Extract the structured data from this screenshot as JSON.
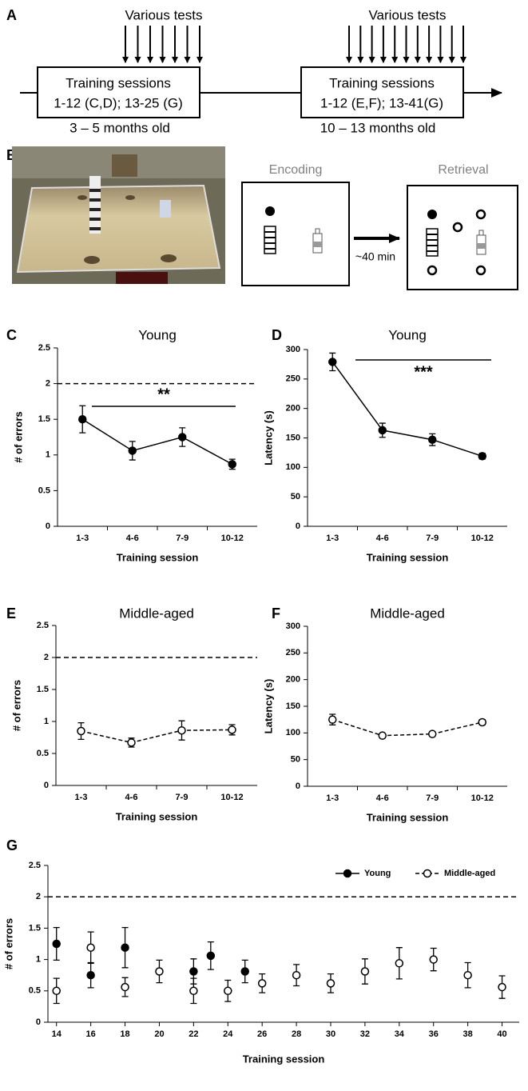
{
  "figure_a": {
    "label": "A",
    "tests_left": "Various tests",
    "tests_right": "Various tests",
    "box_left": [
      "Training sessions",
      "1-12 (C,D); 13-25 (G)"
    ],
    "box_right": [
      "Training sessions",
      "1-12 (E,F); 13-41(G)"
    ],
    "age_left": "3 – 5 months old",
    "age_right": "10 – 13 months old"
  },
  "figure_b": {
    "label": "B",
    "encoding": "Encoding",
    "retrieval": "Retrieval",
    "delay": "~40 min"
  },
  "chart_data": [
    {
      "type": "line",
      "panel": "C",
      "title": "Young",
      "x_label": "Training session",
      "y_label": "# of errors",
      "categories": [
        "1-3",
        "4-6",
        "7-9",
        "10-12"
      ],
      "series": [
        {
          "values": [
            1.5,
            1.06,
            1.25,
            0.87
          ],
          "errors": [
            0.19,
            0.13,
            0.13,
            0.07
          ],
          "color": "#000000",
          "marker": "filled",
          "line_style": "solid"
        }
      ],
      "ylim": [
        0,
        2.5
      ],
      "yticks": [
        0,
        0.5,
        1,
        1.5,
        2,
        2.5
      ],
      "hline": 2,
      "significance": "**"
    },
    {
      "type": "line",
      "panel": "D",
      "title": "Young",
      "x_label": "Training session",
      "y_label": "Latency (s)",
      "categories": [
        "1-3",
        "4-6",
        "7-9",
        "10-12"
      ],
      "series": [
        {
          "values": [
            279,
            163,
            147,
            119
          ],
          "errors": [
            15,
            12,
            10,
            5
          ],
          "color": "#000000",
          "marker": "filled",
          "line_style": "solid"
        }
      ],
      "ylim": [
        0,
        300
      ],
      "yticks": [
        0,
        50,
        100,
        150,
        200,
        250,
        300
      ],
      "significance": "***"
    },
    {
      "type": "line",
      "panel": "E",
      "title": "Middle-aged",
      "x_label": "Training session",
      "y_label": "# of errors",
      "categories": [
        "1-3",
        "4-6",
        "7-9",
        "10-12"
      ],
      "series": [
        {
          "values": [
            0.85,
            0.67,
            0.86,
            0.87
          ],
          "errors": [
            0.13,
            0.07,
            0.15,
            0.08
          ],
          "color": "#000000",
          "marker": "open",
          "line_style": "dashed"
        }
      ],
      "ylim": [
        0,
        2.5
      ],
      "yticks": [
        0,
        0.5,
        1,
        1.5,
        2,
        2.5
      ],
      "hline": 2
    },
    {
      "type": "line",
      "panel": "F",
      "title": "Middle-aged",
      "x_label": "Training session",
      "y_label": "Latency (s)",
      "categories": [
        "1-3",
        "4-6",
        "7-9",
        "10-12"
      ],
      "series": [
        {
          "values": [
            125,
            95,
            98,
            120
          ],
          "errors": [
            10,
            3,
            4,
            5
          ],
          "color": "#000000",
          "marker": "open",
          "line_style": "dashed"
        }
      ],
      "ylim": [
        0,
        300
      ],
      "yticks": [
        0,
        50,
        100,
        150,
        200,
        250,
        300
      ]
    },
    {
      "type": "scatter",
      "panel": "G",
      "x_label": "Training session",
      "y_label": "# of errors",
      "series": [
        {
          "name": "Young",
          "color": "#000000",
          "marker": "filled",
          "line_style": "solid",
          "x": [
            14,
            16,
            18,
            22,
            23,
            25
          ],
          "values": [
            1.25,
            0.75,
            1.19,
            0.81,
            1.06,
            0.81
          ],
          "errors": [
            0.26,
            0.2,
            0.32,
            0.2,
            0.22,
            0.18
          ]
        },
        {
          "name": "Middle-aged",
          "color": "#000000",
          "marker": "open",
          "line_style": "dashed",
          "x": [
            14,
            16,
            18,
            20,
            22,
            24,
            26,
            28,
            30,
            32,
            34,
            36,
            38,
            40
          ],
          "values": [
            0.5,
            1.19,
            0.56,
            0.81,
            0.5,
            0.5,
            0.62,
            0.75,
            0.62,
            0.81,
            0.94,
            1.0,
            0.75,
            0.56
          ],
          "errors": [
            0.2,
            0.25,
            0.15,
            0.18,
            0.2,
            0.17,
            0.15,
            0.17,
            0.15,
            0.2,
            0.25,
            0.18,
            0.2,
            0.18
          ]
        }
      ],
      "xlim": [
        13.5,
        41
      ],
      "xticks": [
        14,
        16,
        18,
        20,
        22,
        24,
        26,
        28,
        30,
        32,
        34,
        36,
        38,
        40
      ],
      "ylim": [
        0,
        2.5
      ],
      "yticks": [
        0,
        0.5,
        1,
        1.5,
        2,
        2.5
      ],
      "hline": 2,
      "legend": "upper right"
    }
  ]
}
